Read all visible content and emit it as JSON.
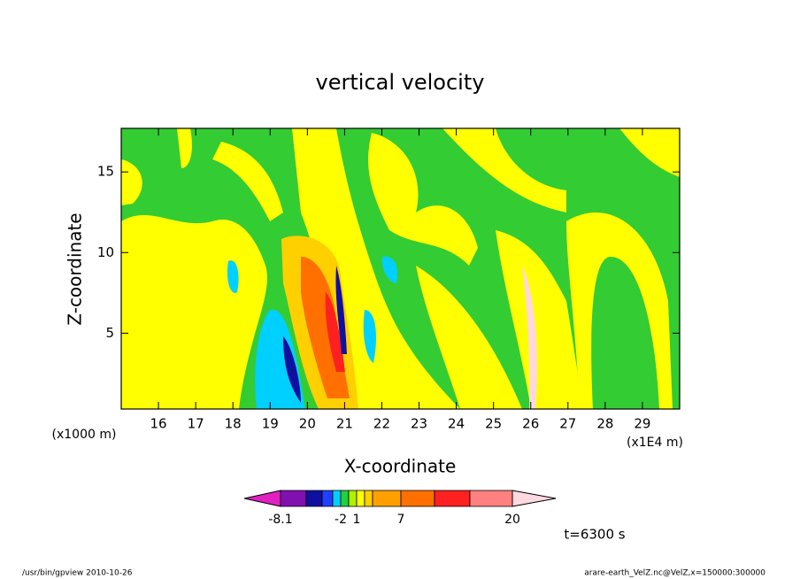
{
  "chart_data": {
    "type": "contour",
    "title": "vertical velocity",
    "xlabel": "X-coordinate",
    "ylabel": "Z-coordinate",
    "x_unit": "(x1E4 m)",
    "y_unit": "(x1000 m)",
    "xlim": [
      15,
      30
    ],
    "xticks": [
      16,
      17,
      18,
      19,
      20,
      21,
      22,
      23,
      24,
      25,
      26,
      27,
      28,
      29
    ],
    "ylim": [
      0.3,
      17.7
    ],
    "yticks": [
      5,
      10,
      15
    ],
    "time_label": "t=6300 s",
    "colorbar": {
      "colors": [
        "#e020c0",
        "#8010b0",
        "#1010a0",
        "#2040ff",
        "#00d0ff",
        "#20d040",
        "#b0f000",
        "#ffff00",
        "#ffd000",
        "#ffa000",
        "#ff7000",
        "#ff2020",
        "#ff8080",
        "#ffb8b8",
        "#ffd8e0"
      ],
      "labels": [
        {
          "value": -8.1,
          "label": "-8.1"
        },
        -2,
        1,
        7,
        20
      ]
    },
    "footer_left": "/usr/bin/gpview   2010-10-26",
    "footer_right": "arare-earth_VelZ.nc@VelZ,x=150000:300000"
  }
}
